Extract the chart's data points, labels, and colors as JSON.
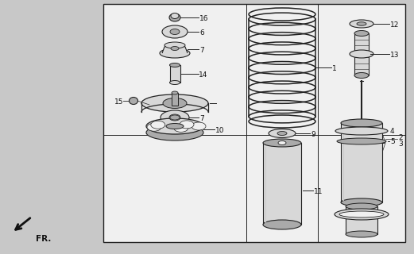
{
  "bg_color": "#c8c8c8",
  "box_bg": "#f0f0f0",
  "lc": "#222222",
  "pf": "#d8d8d8",
  "pf_dark": "#aaaaaa",
  "fr_label": "FR."
}
